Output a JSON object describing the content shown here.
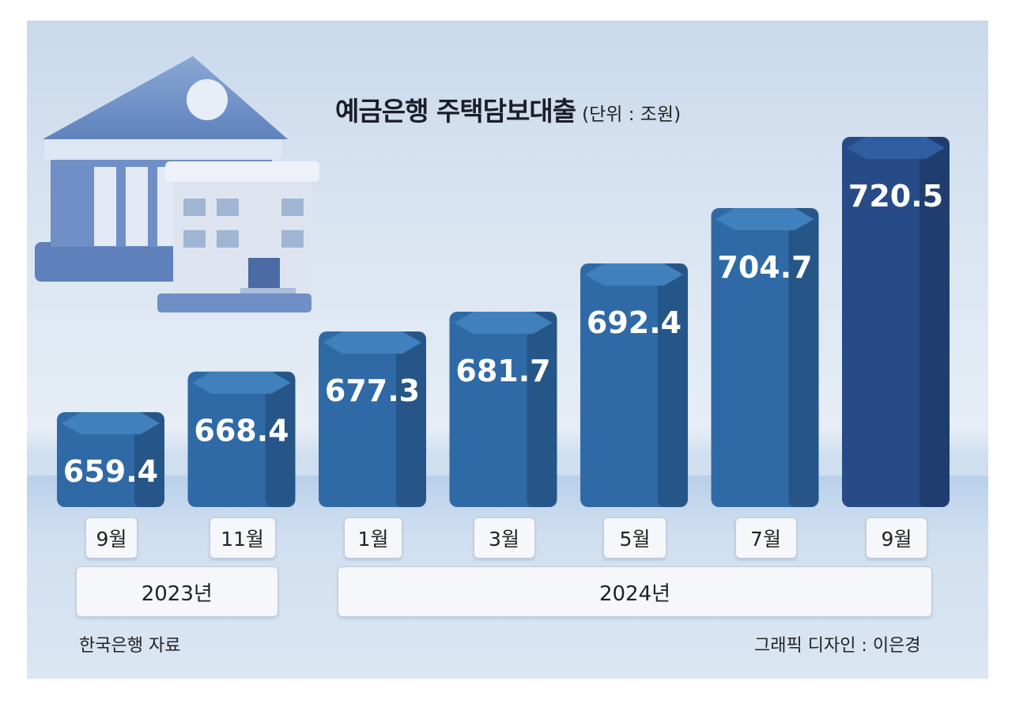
{
  "chart_data": {
    "type": "bar",
    "title": "예금은행 주택담보대출",
    "unit": "(단위 : 조원)",
    "categories": [
      "9월",
      "11월",
      "1월",
      "3월",
      "5월",
      "7월",
      "9월"
    ],
    "values": [
      659.4,
      668.4,
      677.3,
      681.7,
      692.4,
      704.7,
      720.5
    ],
    "value_labels": [
      "659.4",
      "668.4",
      "677.3",
      "681.7",
      "692.4",
      "704.7",
      "720.5"
    ],
    "year_groups": [
      {
        "label": "2023년",
        "span": [
          0,
          1
        ]
      },
      {
        "label": "2024년",
        "span": [
          2,
          6
        ]
      }
    ],
    "source": "한국은행 자료",
    "credit": "그래픽 디자인 : 이은경",
    "colors": {
      "bar": "#2f6aa6",
      "bar_top": "#3f80bd",
      "bar_last": "#274b87",
      "bar_last_top": "#2f5d9f"
    }
  }
}
